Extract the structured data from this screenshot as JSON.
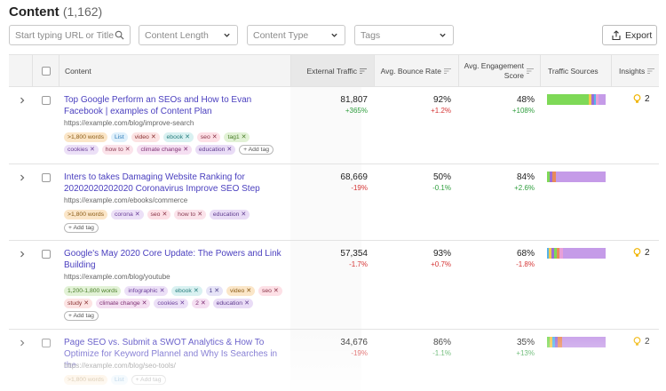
{
  "header": {
    "title": "Content",
    "count": "(1,162)"
  },
  "filters": {
    "search_placeholder": "Start typing URL or Title",
    "length_placeholder": "Content Length",
    "type_placeholder": "Content Type",
    "tags_placeholder": "Tags",
    "export_label": "Export"
  },
  "columns": {
    "content": "Content",
    "external_traffic": "External Traffic",
    "bounce": "Avg. Bounce Rate",
    "engagement_1": "Avg. Engagement",
    "engagement_2": "Score",
    "sources": "Traffic Sources",
    "insights": "Insights"
  },
  "add_tag_label": "+ Add tag",
  "rows": [
    {
      "title": "Top Google Perform an SEOs and How to Evan Facebook | examples of Content Plan",
      "url": "https://example.com/blog/improve-search",
      "traffic": "81,807",
      "traffic_delta": "+365%",
      "bounce": "92%",
      "bounce_delta": "+1.2%",
      "engagement": "48%",
      "engagement_delta": "+108%",
      "insights": "2",
      "tags": [
        ">1,800 words",
        "List",
        "video",
        "ebook",
        "seo",
        "tag1",
        "cookies",
        "how to",
        "climate change",
        "education"
      ]
    },
    {
      "title": "Inters to takes Damaging Website Ranking for 20202020202020 Coronavirus Improve SEO Step",
      "url": "https://example.com/ebooks/commerce",
      "traffic": "68,669",
      "traffic_delta": "-19%",
      "bounce": "50%",
      "bounce_delta": "-0.1%",
      "engagement": "84%",
      "engagement_delta": "+2.6%",
      "insights": "",
      "tags": [
        ">1,800 words",
        "corona",
        "seo",
        "how to",
        "education"
      ]
    },
    {
      "title": "Google's May 2020 Core Update: The Powers and Link Building",
      "url": "https://example.com/blog/youtube",
      "traffic": "57,354",
      "traffic_delta": "-1.7%",
      "bounce": "93%",
      "bounce_delta": "+0.7%",
      "engagement": "68%",
      "engagement_delta": "-1.8%",
      "insights": "2",
      "tags": [
        "1,200-1,800 words",
        "infographic",
        "ebook",
        "1",
        "video",
        "seo",
        "study",
        "climate change",
        "cookies",
        "2",
        "education"
      ]
    },
    {
      "title": "Page SEO vs. Submit a SWOT Analytics & How To Optimize for Keyword Plannel and Why Is Searches in the",
      "url": "https://example.com/blog/seo-tools/",
      "traffic": "34,676",
      "traffic_delta": "-19%",
      "bounce": "86%",
      "bounce_delta": "-1.1%",
      "engagement": "35%",
      "engagement_delta": "+13%",
      "insights": "2",
      "tags": [
        ">1,800 words",
        "List"
      ]
    }
  ],
  "colors": {
    "title_link": "#4a3fbf",
    "negative": "#d53535",
    "positive": "#2f9e3e",
    "insight_bulb": "#f0b400"
  }
}
